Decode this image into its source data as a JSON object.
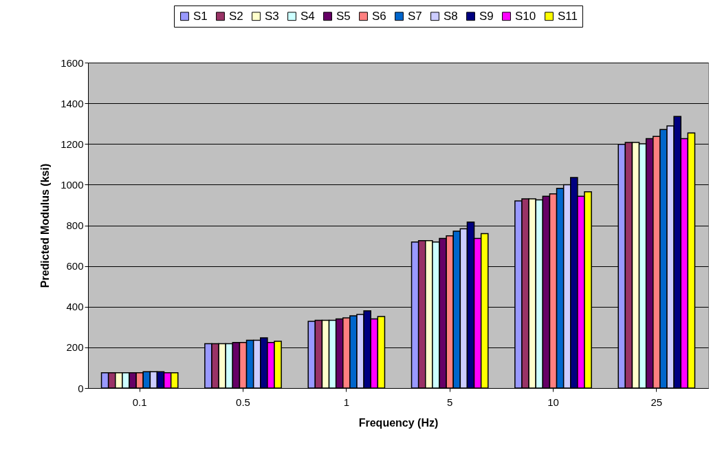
{
  "chart_data": {
    "type": "bar",
    "xlabel": "Frequency (Hz)",
    "ylabel": "Predicted Modulus (ksi)",
    "categories": [
      "0.1",
      "0.5",
      "1",
      "5",
      "10",
      "25"
    ],
    "ylim": [
      0,
      1600
    ],
    "yticks": [
      0,
      200,
      400,
      600,
      800,
      1000,
      1200,
      1400,
      1600
    ],
    "grid": "y",
    "legend": "top",
    "series": [
      {
        "name": "S1",
        "color": "#9999ff",
        "values": [
          75,
          218,
          328,
          718,
          920,
          1198
        ]
      },
      {
        "name": "S2",
        "color": "#993366",
        "values": [
          75,
          218,
          333,
          725,
          930,
          1208
        ]
      },
      {
        "name": "S3",
        "color": "#ffffcc",
        "values": [
          75,
          218,
          333,
          725,
          930,
          1208
        ]
      },
      {
        "name": "S4",
        "color": "#ccffff",
        "values": [
          75,
          218,
          333,
          718,
          925,
          1201
        ]
      },
      {
        "name": "S5",
        "color": "#660066",
        "values": [
          75,
          224,
          340,
          736,
          943,
          1226
        ]
      },
      {
        "name": "S6",
        "color": "#ff8080",
        "values": [
          75,
          224,
          345,
          748,
          955,
          1237
        ]
      },
      {
        "name": "S7",
        "color": "#0066cc",
        "values": [
          80,
          235,
          355,
          771,
          982,
          1271
        ]
      },
      {
        "name": "S8",
        "color": "#ccccff",
        "values": [
          80,
          235,
          362,
          783,
          1000,
          1289
        ]
      },
      {
        "name": "S9",
        "color": "#000080",
        "values": [
          80,
          247,
          380,
          816,
          1035,
          1335
        ]
      },
      {
        "name": "S10",
        "color": "#ff00ff",
        "values": [
          75,
          224,
          340,
          736,
          943,
          1226
        ]
      },
      {
        "name": "S11",
        "color": "#ffff00",
        "values": [
          75,
          230,
          352,
          759,
          965,
          1254
        ]
      }
    ]
  }
}
